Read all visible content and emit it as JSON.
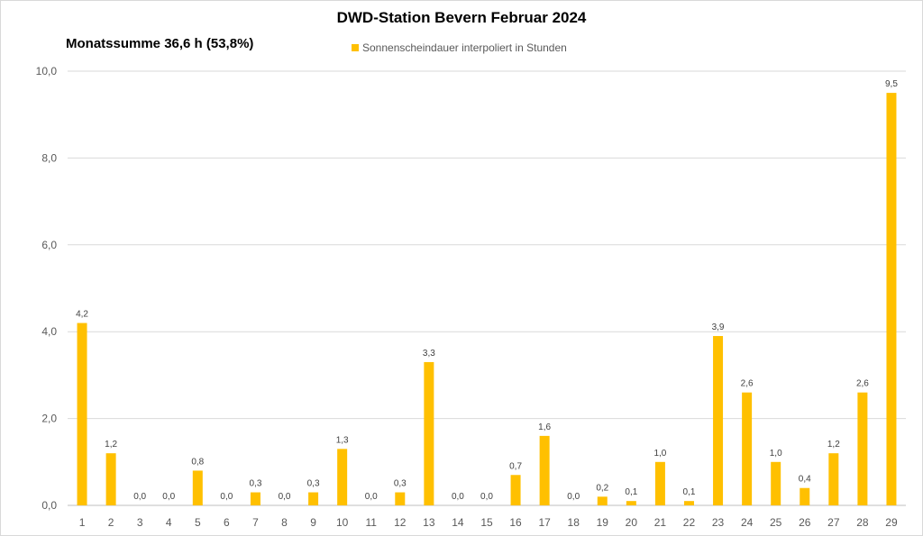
{
  "chart_data": {
    "type": "bar",
    "title": "DWD-Station  Bevern Februar 2024",
    "subtitle": "Monatssumme 36,6 h (53,8%)",
    "legend": "Sonnenscheindauer interpoliert in Stunden",
    "legend_position": "top-center",
    "grid": true,
    "bar_color": "#FFC000",
    "ylim": [
      0,
      10
    ],
    "y_ticks": [
      "0,0",
      "2,0",
      "4,0",
      "6,0",
      "8,0",
      "10,0"
    ],
    "categories": [
      "1",
      "2",
      "3",
      "4",
      "5",
      "6",
      "7",
      "8",
      "9",
      "10",
      "11",
      "12",
      "13",
      "14",
      "15",
      "16",
      "17",
      "18",
      "19",
      "20",
      "21",
      "22",
      "23",
      "24",
      "25",
      "26",
      "27",
      "28",
      "29"
    ],
    "values": [
      4.2,
      1.2,
      0.0,
      0.0,
      0.8,
      0.0,
      0.3,
      0.0,
      0.3,
      1.3,
      0.0,
      0.3,
      3.3,
      0.0,
      0.0,
      0.7,
      1.6,
      0.0,
      0.2,
      0.1,
      1.0,
      0.1,
      3.9,
      2.6,
      1.0,
      0.4,
      1.2,
      2.6,
      9.5
    ],
    "value_labels": [
      "4,2",
      "1,2",
      "0,0",
      "0,0",
      "0,8",
      "0,0",
      "0,3",
      "0,0",
      "0,3",
      "1,3",
      "0,0",
      "0,3",
      "3,3",
      "0,0",
      "0,0",
      "0,7",
      "1,6",
      "0,0",
      "0,2",
      "0,1",
      "1,0",
      "0,1",
      "3,9",
      "2,6",
      "1,0",
      "0,4",
      "1,2",
      "2,6",
      "9,5"
    ]
  }
}
